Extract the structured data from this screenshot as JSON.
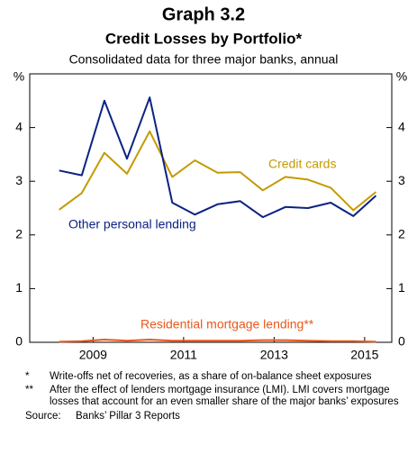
{
  "chart_data": {
    "type": "line",
    "graph_number": "Graph 3.2",
    "title": "Credit Losses by Portfolio*",
    "subtitle": "Consolidated data for three major banks, annual",
    "y_unit": "%",
    "x": [
      2008.25,
      2008.75,
      2009.25,
      2009.75,
      2010.25,
      2010.75,
      2011.25,
      2011.75,
      2012.25,
      2012.75,
      2013.25,
      2013.75,
      2014.25,
      2014.75,
      2015.25
    ],
    "series": [
      {
        "name": "Credit cards",
        "color": "#c49a00",
        "values": [
          2.47,
          2.78,
          3.53,
          3.14,
          3.93,
          3.08,
          3.39,
          3.16,
          3.17,
          2.83,
          3.08,
          3.03,
          2.88,
          2.46,
          2.8
        ]
      },
      {
        "name": "Other personal lending",
        "color": "#0a2284",
        "values": [
          3.2,
          3.11,
          4.5,
          3.42,
          4.56,
          2.6,
          2.38,
          2.57,
          2.63,
          2.33,
          2.52,
          2.5,
          2.6,
          2.35,
          2.73
        ]
      },
      {
        "name": "Residential mortgage lending**",
        "color": "#e8581c",
        "values": [
          0.01,
          0.02,
          0.05,
          0.03,
          0.05,
          0.03,
          0.03,
          0.03,
          0.03,
          0.04,
          0.04,
          0.03,
          0.02,
          0.02,
          0.01
        ]
      }
    ],
    "xlim": [
      2007.6,
      2015.6
    ],
    "xticks": [
      2009,
      2011,
      2013,
      2015
    ],
    "ylim": [
      0,
      5
    ],
    "yticks": [
      0,
      1,
      2,
      3,
      4
    ],
    "grid": false,
    "notes": [
      {
        "marker": "*",
        "text": "Write-offs net of recoveries, as a share of on-balance sheet exposures"
      },
      {
        "marker": "**",
        "text": "After the effect of lenders mortgage insurance (LMI). LMI covers mortgage losses that account for an even smaller share of the major banks’ exposures"
      }
    ],
    "source_label": "Source:",
    "source": "Banks’ Pillar 3 Reports"
  }
}
